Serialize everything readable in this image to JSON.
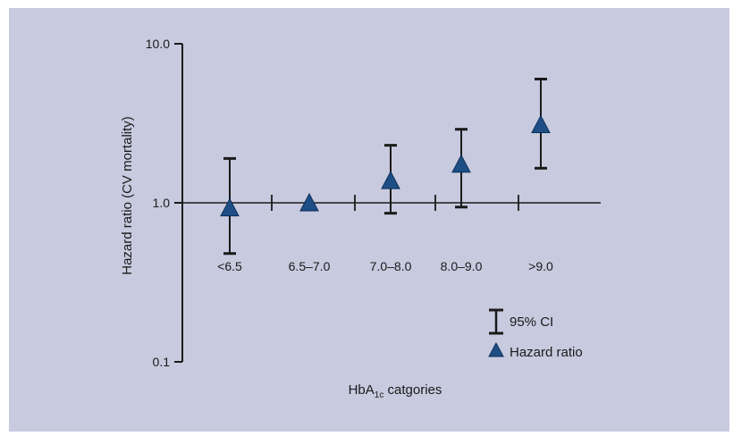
{
  "chart_data": {
    "type": "scatter",
    "title": "",
    "xlabel": "HbA",
    "xlabel_subscript": "1c",
    "xlabel_suffix": " catgories",
    "ylabel": "Hazard ratio (CV mortality)",
    "y_scale": "log",
    "ylim": [
      0.1,
      10.0
    ],
    "y_ticks": [
      10.0,
      1.0,
      0.1
    ],
    "y_tick_labels": [
      "10.0",
      "1.0",
      "0.1"
    ],
    "categories": [
      "<6.5",
      "6.5–7.0",
      "7.0–8.0",
      "8.0–9.0",
      ">9.0"
    ],
    "series": [
      {
        "name": "Hazard ratio",
        "values": [
          0.93,
          1.0,
          1.38,
          1.75,
          3.1
        ]
      },
      {
        "name": "95% CI",
        "lower": [
          0.48,
          null,
          0.86,
          0.94,
          1.65
        ],
        "upper": [
          1.9,
          null,
          2.3,
          2.9,
          6.0
        ]
      }
    ],
    "reference_line": 1.0,
    "legend": {
      "placement": "bottom-right",
      "entries": [
        "95% CI",
        "Hazard ratio"
      ]
    },
    "grid": false
  },
  "colors": {
    "background": "#c8cadf",
    "marker": "#1d4f86",
    "error_bar": "#1a1a1a",
    "axis": "#1a1a1a"
  }
}
